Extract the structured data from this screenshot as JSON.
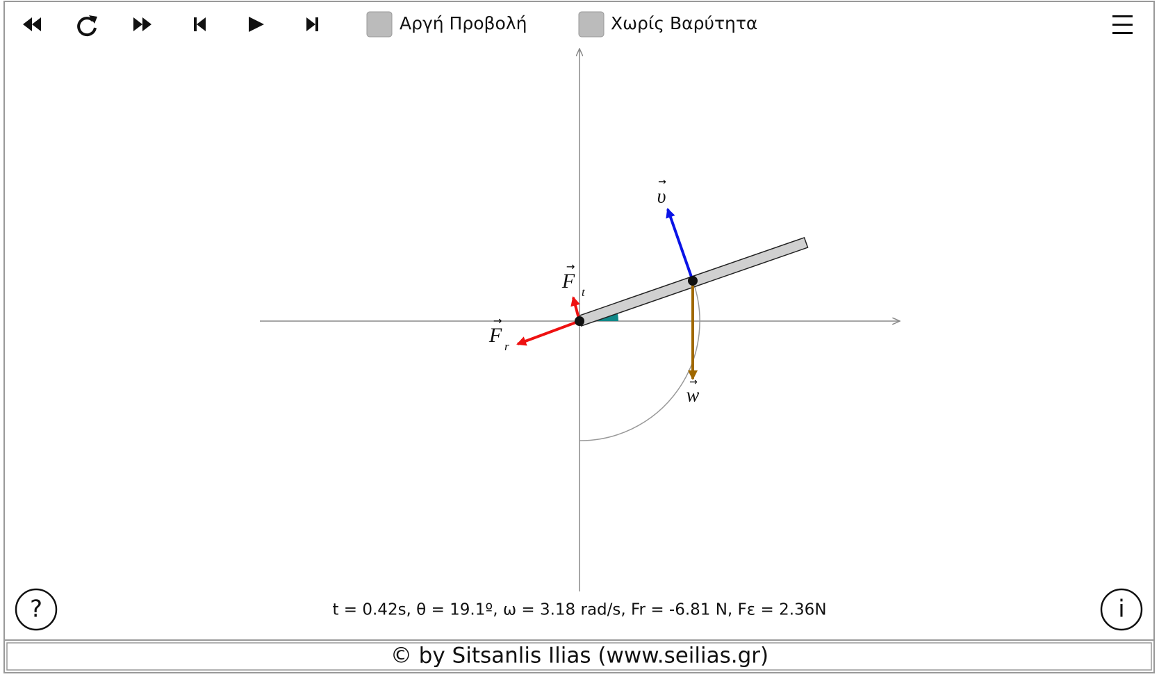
{
  "toolbar": {
    "checkboxes": [
      "Αργή Προβολή",
      "Χωρίς Βαρύτητα"
    ]
  },
  "vectors": {
    "velocity": "υ",
    "weight": "w",
    "tangential": {
      "symbol": "F",
      "subscript": "t"
    },
    "radial": {
      "symbol": "F",
      "subscript": "r"
    }
  },
  "status": "t = 0.42s, θ = 19.1º, ω = 3.18 rad/s, Fr = -6.81 N, Fε = 2.36N",
  "buttons": {
    "help": "?",
    "info": "i"
  },
  "footer": "© by Sitsanlis Ilias (www.seilias.gr)"
}
